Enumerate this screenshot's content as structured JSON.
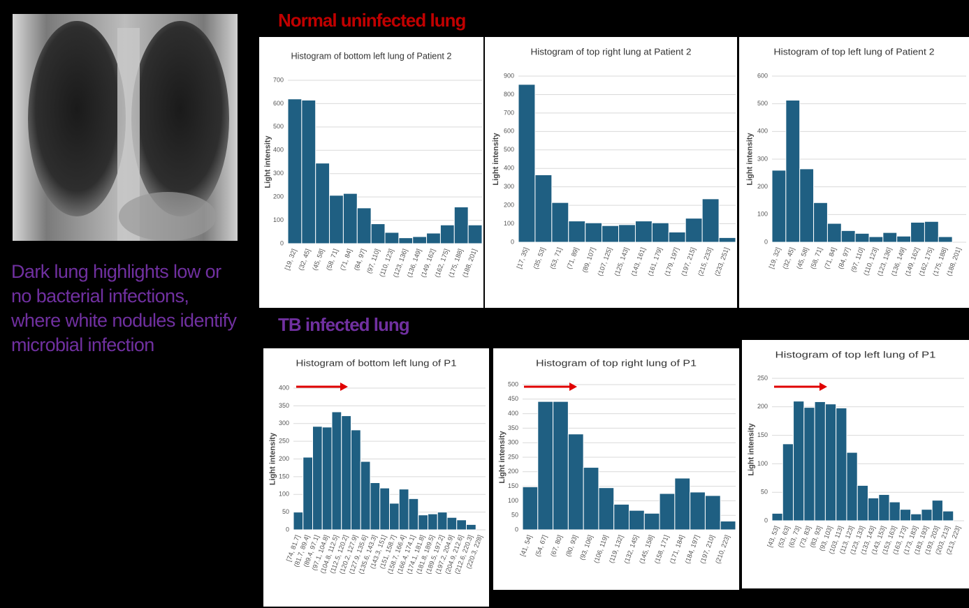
{
  "labels": {
    "normal": "Normal uninfected lung",
    "tb": "TB infected lung",
    "caption": "Dark lung highlights low or no bacterial infections, where white nodules identify microbial infection"
  },
  "chart_data": [
    {
      "type": "bar",
      "title": "Histogram of bottom left lung of Patient 2",
      "y_label": "Light intensity",
      "color": "#1f5f82",
      "grid": true,
      "categories": [
        "[19, 32]",
        "(32, 45]",
        "(45, 58]",
        "(58, 71]",
        "(71, 84]",
        "(84, 97]",
        "(97, 110]",
        "(110, 123]",
        "(123, 136]",
        "(136, 149]",
        "(149, 162]",
        "(162, 175]",
        "(175, 188]",
        "(188, 201]"
      ],
      "values": [
        620,
        615,
        345,
        207,
        215,
        153,
        85,
        48,
        25,
        30,
        45,
        80,
        157,
        80
      ],
      "ylim": [
        0,
        700
      ],
      "yticks": [
        0,
        100,
        200,
        300,
        400,
        500,
        600,
        700
      ]
    },
    {
      "type": "bar",
      "title": "Histogram of top right lung at Patient 2",
      "y_label": "Light intensity",
      "color": "#1f5f82",
      "grid": true,
      "categories": [
        "[17, 35]",
        "(35, 53]",
        "(53, 71]",
        "(71, 89]",
        "(89, 107]",
        "(107, 125]",
        "(125, 143]",
        "(143, 161]",
        "(161, 179]",
        "(179, 197]",
        "(197, 215]",
        "(215, 233]",
        "(233, 251]"
      ],
      "values": [
        855,
        365,
        215,
        115,
        105,
        90,
        95,
        115,
        105,
        55,
        130,
        235,
        25
      ],
      "ylim": [
        0,
        900
      ],
      "yticks": [
        0,
        100,
        200,
        300,
        400,
        500,
        600,
        700,
        800,
        900
      ]
    },
    {
      "type": "bar",
      "title": "Histogram of top left lung of Patient 2",
      "y_label": "Light intensity",
      "color": "#1f5f82",
      "grid": true,
      "categories": [
        "[19, 32]",
        "(32, 45]",
        "(45, 58]",
        "(58, 71]",
        "(71, 84]",
        "(84, 97]",
        "(97, 110]",
        "(110, 123]",
        "(123, 136]",
        "(136, 149]",
        "(149, 162]",
        "(162, 175]",
        "(175, 188]",
        "(188, 201]"
      ],
      "values": [
        260,
        513,
        265,
        143,
        68,
        42,
        32,
        20,
        35,
        22,
        72,
        75,
        20,
        0
      ],
      "ylim": [
        0,
        600
      ],
      "yticks": [
        0,
        100,
        200,
        300,
        400,
        500,
        600
      ]
    },
    {
      "type": "bar",
      "title": "Histogram of bottom left lung of P1",
      "y_label": "Light intensity",
      "color": "#1f5f82",
      "grid": true,
      "categories": [
        "[74, 81.7]",
        "(81.7, 89.4]",
        "(89.4, 97.1]",
        "(97.1, 104.8]",
        "(104.8, 112.5]",
        "(112.5, 120.2]",
        "(120.2, 127.9]",
        "(127.9, 135.6]",
        "(135.6, 143.3]",
        "(143.3, 151]",
        "(151, 158.7]",
        "(158.7, 166.4]",
        "(166.4, 174.1]",
        "(174.1, 181.8]",
        "(181.8, 189.5]",
        "(189.5, 197.2]",
        "(197.2, 204.9]",
        "(204.9, 212.6]",
        "(212.6, 220.3]",
        "(220.3, 228]"
      ],
      "values": [
        50,
        205,
        292,
        290,
        333,
        322,
        282,
        193,
        133,
        118,
        75,
        115,
        88,
        42,
        45,
        50,
        35,
        28,
        15,
        0
      ],
      "ylim": [
        0,
        400
      ],
      "yticks": [
        0,
        50,
        100,
        150,
        200,
        250,
        300,
        350,
        400
      ]
    },
    {
      "type": "bar",
      "title": "Histogram of top right lung of P1",
      "y_label": "Light intensity",
      "color": "#1f5f82",
      "grid": true,
      "categories": [
        "[41, 54]",
        "(54, 67]",
        "(67, 80]",
        "(80, 93]",
        "(93, 106]",
        "(106, 119]",
        "(119, 132]",
        "(132, 145]",
        "(145, 158]",
        "(158, 171]",
        "(171, 184]",
        "(184, 197]",
        "(197, 210]",
        "(210, 223]"
      ],
      "values": [
        148,
        442,
        442,
        330,
        215,
        145,
        88,
        67,
        57,
        125,
        178,
        130,
        118,
        30
      ],
      "ylim": [
        0,
        500
      ],
      "yticks": [
        0,
        50,
        100,
        150,
        200,
        250,
        300,
        350,
        400,
        450,
        500
      ]
    },
    {
      "type": "bar",
      "title": "Histogram of top left lung of P1",
      "y_label": "Light intensity",
      "color": "#1f5f82",
      "grid": true,
      "categories": [
        "[43, 53]",
        "(53, 63]",
        "(63, 73]",
        "(73, 83]",
        "(83, 93]",
        "(93, 103]",
        "(103, 113]",
        "(113, 123]",
        "(123, 133]",
        "(133, 143]",
        "(143, 153]",
        "(153, 163]",
        "(163, 173]",
        "(173, 183]",
        "(183, 193]",
        "(193, 203]",
        "(203, 213]",
        "(213, 223]"
      ],
      "values": [
        13,
        135,
        210,
        199,
        209,
        205,
        198,
        120,
        62,
        40,
        46,
        33,
        20,
        12,
        20,
        36,
        17,
        0
      ],
      "ylim": [
        0,
        250
      ],
      "yticks": [
        0,
        50,
        100,
        150,
        200,
        250
      ]
    }
  ]
}
